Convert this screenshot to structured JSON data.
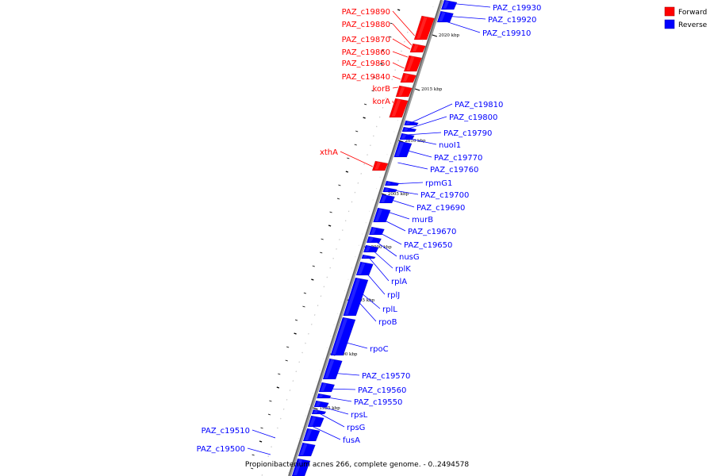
{
  "title": "Propionibacterium acnes 266, complete genome. - 0..2494578",
  "legend": [
    {
      "label": "Forward",
      "color": "#ff0000"
    },
    {
      "label": "Reverse",
      "color": "#0000ff"
    }
  ],
  "ticks": [
    "2020 kbp",
    "2015 kbp",
    "2010 kbp",
    "2005 kbp",
    "2000 kbp",
    "1995 kbp",
    "1990 kbp",
    "1985 kbp"
  ],
  "forward_genes": [
    "PAZ_c19890",
    "PAZ_c19880",
    "PAZ_c19870",
    "PAZ_c19860",
    "PAZ_c19850",
    "PAZ_c19840",
    "korB",
    "korA",
    "xthA"
  ],
  "reverse_genes": [
    "PAZ_c19930",
    "PAZ_c19920",
    "PAZ_c19910",
    "PAZ_c19810",
    "PAZ_c19800",
    "PAZ_c19790",
    "nuoI1",
    "PAZ_c19770",
    "PAZ_c19760",
    "rpmG1",
    "PAZ_c19700",
    "PAZ_c19690",
    "murB",
    "PAZ_c19670",
    "PAZ_c19650",
    "nusG",
    "rplK",
    "rplA",
    "rplJ",
    "rplL",
    "rpoB",
    "rpoC",
    "PAZ_c19570",
    "PAZ_c19560",
    "PAZ_c19550",
    "rpsL",
    "rpsG",
    "fusA",
    "PAZ_c19510",
    "PAZ_c19500"
  ]
}
